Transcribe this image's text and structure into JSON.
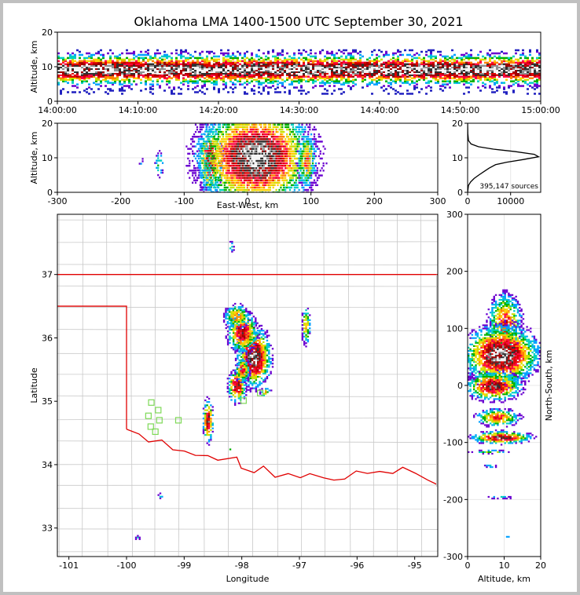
{
  "chart_data": [
    {
      "type": "heatmap",
      "panel": "time-height",
      "title": "Oklahoma LMA 1400-1500 UTC September 30, 2021",
      "xlabel": "",
      "ylabel": "Altitude, km",
      "x_ticks": [
        "14:00:00",
        "14:10:00",
        "14:20:00",
        "14:30:00",
        "14:40:00",
        "14:50:00",
        "15:00:00"
      ],
      "y_ticks": [
        0,
        10,
        20
      ],
      "ylim": [
        0,
        20
      ],
      "band": {
        "bottom_km": 2,
        "top_km": 15,
        "core_bottom_km": 6,
        "core_top_km": 12
      }
    },
    {
      "type": "heatmap",
      "panel": "east-west-altitude",
      "xlabel": "East-West, km",
      "ylabel": "Altitude, km",
      "x_ticks": [
        -300,
        -200,
        -100,
        0,
        100,
        200,
        300
      ],
      "y_ticks": [
        0,
        10,
        20
      ],
      "xlim": [
        -300,
        300
      ],
      "ylim": [
        0,
        20
      ],
      "clusters": [
        {
          "x": -170,
          "alt": 9,
          "w": 4,
          "h": 3,
          "intensity": 0.2
        },
        {
          "x": -140,
          "alt": 8,
          "w": 6,
          "h": 6,
          "intensity": 0.35
        },
        {
          "x": -60,
          "alt": 9,
          "w": 14,
          "h": 14,
          "intensity": 0.85
        },
        {
          "x": 12,
          "alt": 10,
          "w": 70,
          "h": 20,
          "intensity": 1.0
        },
        {
          "x": 92,
          "alt": 9,
          "w": 12,
          "h": 12,
          "intensity": 0.6
        }
      ]
    },
    {
      "type": "line",
      "panel": "altitude-histogram",
      "annotation": "395,147 sources",
      "x_ticks": [
        0,
        10000
      ],
      "y_ticks": [
        0,
        10,
        20
      ],
      "xlim": [
        0,
        17000
      ],
      "ylim": [
        0,
        20
      ],
      "x": [
        0,
        200,
        700,
        1500,
        2600,
        3800,
        5000,
        6500,
        9000,
        13000,
        16500,
        15500,
        11000,
        6000,
        2500,
        800,
        200,
        50,
        0
      ],
      "y": [
        0,
        2,
        3,
        4,
        5,
        6,
        7,
        8,
        8.7,
        9.5,
        10.3,
        11,
        11.8,
        12.5,
        13.2,
        14,
        15,
        17,
        20
      ]
    },
    {
      "type": "heatmap",
      "panel": "plan-view",
      "xlabel": "Longitude",
      "ylabel": "Latitude",
      "x_ticks": [
        -101,
        -100,
        -99,
        -98,
        -97,
        -96,
        -95
      ],
      "y_ticks": [
        33,
        34,
        35,
        36,
        37
      ],
      "xlim": [
        -101.2,
        -94.6
      ],
      "ylim": [
        32.55,
        37.95
      ],
      "clusters": [
        {
          "lon": -97.8,
          "lat": 35.7,
          "w": 0.22,
          "h": 0.35,
          "intensity": 1.0
        },
        {
          "lon": -98.0,
          "lat": 36.1,
          "w": 0.2,
          "h": 0.25,
          "intensity": 0.8
        },
        {
          "lon": -98.1,
          "lat": 36.35,
          "w": 0.18,
          "h": 0.15,
          "intensity": 0.6
        },
        {
          "lon": -98.1,
          "lat": 35.25,
          "w": 0.12,
          "h": 0.2,
          "intensity": 0.85
        },
        {
          "lon": -98.0,
          "lat": 35.5,
          "w": 0.1,
          "h": 0.15,
          "intensity": 0.7
        },
        {
          "lon": -97.6,
          "lat": 35.15,
          "w": 0.08,
          "h": 0.06,
          "intensity": 0.55
        },
        {
          "lon": -96.9,
          "lat": 36.2,
          "w": 0.06,
          "h": 0.25,
          "intensity": 0.55
        },
        {
          "lon": -98.6,
          "lat": 34.7,
          "w": 0.07,
          "h": 0.25,
          "intensity": 0.85
        },
        {
          "lon": -98.2,
          "lat": 34.25,
          "w": 0.03,
          "h": 0.03,
          "intensity": 0.4
        },
        {
          "lon": -98.2,
          "lat": 37.45,
          "w": 0.05,
          "h": 0.08,
          "intensity": 0.3
        },
        {
          "lon": -99.43,
          "lat": 33.52,
          "w": 0.04,
          "h": 0.04,
          "intensity": 0.3
        },
        {
          "lon": -99.82,
          "lat": 32.86,
          "w": 0.04,
          "h": 0.03,
          "intensity": 0.3
        }
      ],
      "stations": [
        {
          "lon": -99.57,
          "lat": 34.98
        },
        {
          "lon": -99.45,
          "lat": 34.86
        },
        {
          "lon": -99.62,
          "lat": 34.77
        },
        {
          "lon": -99.43,
          "lat": 34.7
        },
        {
          "lon": -99.58,
          "lat": 34.6
        },
        {
          "lon": -99.5,
          "lat": 34.52
        },
        {
          "lon": -99.1,
          "lat": 34.7
        },
        {
          "lon": -97.97,
          "lat": 35.01
        },
        {
          "lon": -97.68,
          "lat": 35.13
        }
      ],
      "colors": {
        "border": "#e00000",
        "county": "#c8c8c8",
        "station": "#7ed957"
      }
    },
    {
      "type": "heatmap",
      "panel": "altitude-north-south",
      "xlabel": "Altitude, km",
      "ylabel": "North-South, km",
      "x_ticks": [
        0,
        10,
        20
      ],
      "y_ticks": [
        -300,
        -200,
        -100,
        0,
        100,
        200,
        300
      ],
      "xlim": [
        0,
        20
      ],
      "ylim": [
        -300,
        300
      ],
      "clusters": [
        {
          "alt": 10,
          "y": 110,
          "w": 6,
          "h": 60,
          "intensity": 0.7
        },
        {
          "alt": 9,
          "y": 55,
          "w": 13,
          "h": 55,
          "intensity": 1.0
        },
        {
          "alt": 7,
          "y": 0,
          "w": 10,
          "h": 28,
          "intensity": 0.85
        },
        {
          "alt": 8,
          "y": -55,
          "w": 8,
          "h": 18,
          "intensity": 0.65
        },
        {
          "alt": 9,
          "y": -90,
          "w": 11,
          "h": 12,
          "intensity": 0.85
        },
        {
          "alt": 6,
          "y": -115,
          "w": 8,
          "h": 4,
          "intensity": 0.4
        },
        {
          "alt": 6,
          "y": -140,
          "w": 3,
          "h": 3,
          "intensity": 0.3
        },
        {
          "alt": 9,
          "y": -195,
          "w": 6,
          "h": 3,
          "intensity": 0.3
        },
        {
          "alt": 10,
          "y": -265,
          "w": 3,
          "h": 3,
          "intensity": 0.25
        }
      ]
    }
  ]
}
